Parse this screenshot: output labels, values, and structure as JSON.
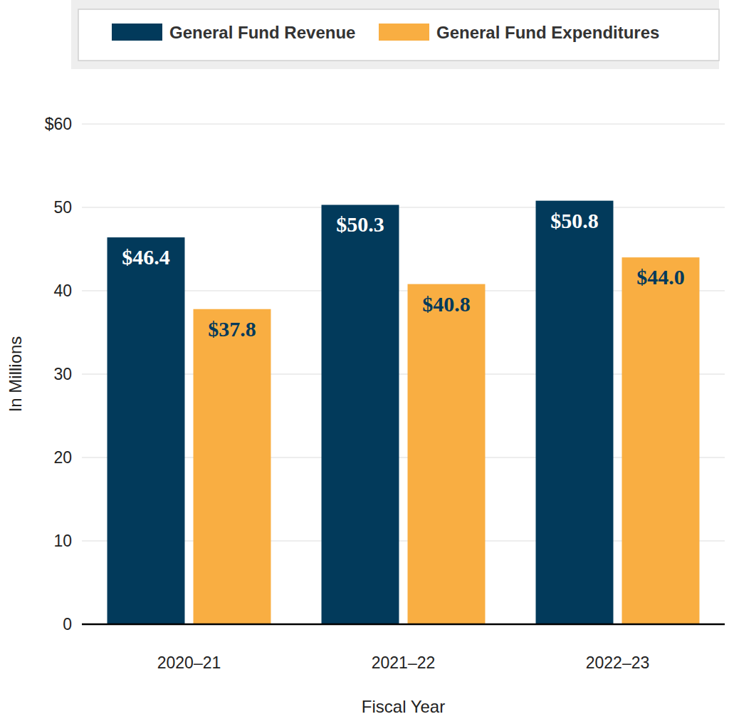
{
  "chart_data": {
    "type": "bar",
    "categories": [
      "2020–21",
      "2021–22",
      "2022–23"
    ],
    "series": [
      {
        "name": "General Fund Revenue",
        "color": "#023a5b",
        "values": [
          46.4,
          50.3,
          50.8
        ],
        "value_labels": [
          "$46.4",
          "$50.3",
          "$50.8"
        ]
      },
      {
        "name": "General Fund Expenditures",
        "color": "#f9ae42",
        "values": [
          37.8,
          40.8,
          44.0
        ],
        "value_labels": [
          "$37.8",
          "$40.8",
          "$44.0"
        ]
      }
    ],
    "y_label": "In Millions",
    "x_label": "Fiscal Year",
    "ylim": [
      0,
      60
    ],
    "yticks": [
      0,
      10,
      20,
      30,
      40,
      50,
      {
        "value": 60,
        "label": "$60"
      }
    ],
    "grid": true,
    "legend": "top",
    "data_labels": true
  }
}
